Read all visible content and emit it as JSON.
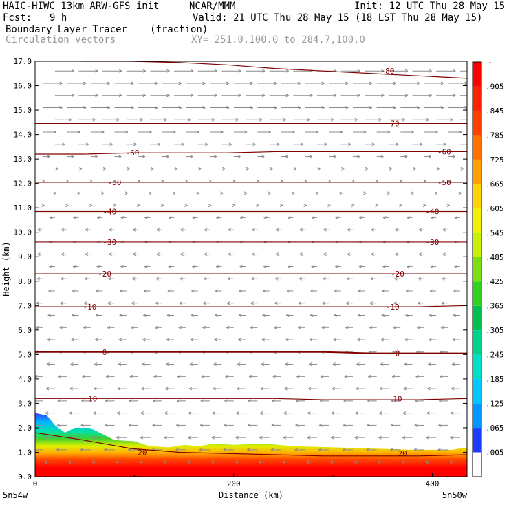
{
  "header": {
    "model": "HAIC-HIWC 13km ARW-GFS init",
    "org": "NCAR/MMM",
    "init": "Init: 12 UTC Thu 28 May 15",
    "fcst_label": "Fcst:",
    "fcst_value": "9 h",
    "valid": "Valid: 21 UTC Thu 28 May 15 (18 LST Thu 28 May 15)",
    "field1_name": "Boundary Layer Tracer",
    "field1_units": "(fraction)",
    "field2_name": "Circulation vectors",
    "xy_range": "XY= 251.0,100.0 to 284.7,100.0"
  },
  "chart_data": {
    "type": "heatmap",
    "xlabel": "Distance (km)",
    "ylabel": "Height (km)",
    "xlim": [
      0,
      435
    ],
    "ylim": [
      0,
      17
    ],
    "y_ticks": [
      "0.0",
      "1.0",
      "2.0",
      "3.0",
      "4.0",
      "5.0",
      "6.0",
      "7.0",
      "8.0",
      "9.0",
      "10.0",
      "11.0",
      "12.0",
      "13.0",
      "14.0",
      "15.0",
      "16.0",
      "17.0"
    ],
    "x_ticks": [
      {
        "value": 0,
        "label": "0"
      },
      {
        "value": 200,
        "label": "200"
      },
      {
        "value": 400,
        "label": "400"
      }
    ],
    "x_end_labels": {
      "left": "5n54w",
      "right": "5n50w"
    },
    "colorbar": {
      "levels": [
        ".005",
        ".065",
        ".125",
        ".185",
        ".245",
        ".305",
        ".365",
        ".425",
        ".485",
        ".545",
        ".605",
        ".665",
        ".725",
        ".785",
        ".845",
        ".905"
      ],
      "top_label": "-",
      "colors": [
        "#ffffff",
        "#1e3cff",
        "#0096ff",
        "#00c8ff",
        "#00e0c8",
        "#00d28c",
        "#00c050",
        "#30d020",
        "#7ce010",
        "#c8f000",
        "#f0f000",
        "#ffd200",
        "#ffa000",
        "#ff7000",
        "#ff4000",
        "#ff2000",
        "#ff0000"
      ]
    },
    "tracer_top_km": [
      [
        0,
        2.6
      ],
      [
        12,
        2.5
      ],
      [
        20,
        2.1
      ],
      [
        30,
        1.8
      ],
      [
        40,
        2.0
      ],
      [
        55,
        2.0
      ],
      [
        65,
        1.8
      ],
      [
        80,
        1.5
      ],
      [
        100,
        1.45
      ],
      [
        115,
        1.25
      ],
      [
        135,
        1.2
      ],
      [
        150,
        1.3
      ],
      [
        165,
        1.25
      ],
      [
        180,
        1.35
      ],
      [
        200,
        1.3
      ],
      [
        230,
        1.35
      ],
      [
        260,
        1.25
      ],
      [
        300,
        1.2
      ],
      [
        340,
        1.15
      ],
      [
        380,
        1.1
      ],
      [
        420,
        1.1
      ],
      [
        435,
        1.2
      ]
    ],
    "isotherms_c": [
      {
        "value": 20,
        "label": "20",
        "heights": [
          1.8,
          1.5,
          1.15,
          1.0,
          0.95,
          0.9,
          0.85,
          0.85,
          0.85,
          0.9
        ],
        "label_pos": [
          [
            108,
            1.0
          ],
          [
            370,
            0.95
          ]
        ]
      },
      {
        "value": 10,
        "label": "10",
        "heights": [
          3.2,
          3.2,
          3.2,
          3.2,
          3.2,
          3.2,
          3.15,
          3.15,
          3.15,
          3.2
        ],
        "label_pos": [
          [
            58,
            3.2
          ],
          [
            365,
            3.2
          ]
        ]
      },
      {
        "value": 0,
        "label": "0",
        "heights": [
          5.1,
          5.1,
          5.1,
          5.1,
          5.1,
          5.1,
          5.1,
          5.05,
          5.05,
          5.05
        ],
        "label_pos": [
          [
            70,
            5.1
          ],
          [
            365,
            5.05
          ]
        ]
      },
      {
        "value": -10,
        "label": "-10",
        "heights": [
          6.95,
          6.95,
          6.95,
          6.95,
          6.95,
          6.95,
          6.95,
          6.95,
          6.95,
          7.0
        ],
        "label_pos": [
          [
            55,
            6.95
          ],
          [
            360,
            6.95
          ]
        ]
      },
      {
        "value": -20,
        "label": "-20",
        "heights": [
          8.3,
          8.3,
          8.3,
          8.3,
          8.3,
          8.3,
          8.3,
          8.3,
          8.3,
          8.3
        ],
        "label_pos": [
          [
            70,
            8.3
          ],
          [
            365,
            8.3
          ]
        ]
      },
      {
        "value": -30,
        "label": "-30",
        "heights": [
          9.6,
          9.6,
          9.6,
          9.6,
          9.6,
          9.6,
          9.6,
          9.6,
          9.6,
          9.6
        ],
        "label_pos": [
          [
            75,
            9.6
          ],
          [
            400,
            9.6
          ]
        ]
      },
      {
        "value": -40,
        "label": "-40",
        "heights": [
          10.85,
          10.85,
          10.85,
          10.85,
          10.85,
          10.85,
          10.85,
          10.85,
          10.85,
          10.85
        ],
        "label_pos": [
          [
            75,
            10.85
          ],
          [
            400,
            10.85
          ]
        ]
      },
      {
        "value": -50,
        "label": "-50",
        "heights": [
          12.05,
          12.05,
          12.05,
          12.05,
          12.05,
          12.05,
          12.05,
          12.05,
          12.05,
          12.05
        ],
        "label_pos": [
          [
            80,
            12.05
          ],
          [
            412,
            12.05
          ]
        ]
      },
      {
        "value": -60,
        "label": "-60",
        "heights": [
          13.2,
          13.2,
          13.25,
          13.25,
          13.25,
          13.3,
          13.3,
          13.3,
          13.3,
          13.3
        ],
        "label_pos": [
          [
            98,
            13.25
          ],
          [
            412,
            13.3
          ]
        ]
      },
      {
        "value": -70,
        "label": "-70",
        "heights": [
          14.45,
          14.45,
          14.45,
          14.45,
          14.45,
          14.45,
          14.45,
          14.45,
          14.45,
          14.45
        ],
        "label_pos": [
          [
            360,
            14.45
          ]
        ]
      },
      {
        "value": -80,
        "label": "-80",
        "heights": [
          17.05,
          17.0,
          17.0,
          16.95,
          16.85,
          16.7,
          16.6,
          16.5,
          16.4,
          16.3
        ],
        "label_pos": [
          [
            355,
            16.6
          ]
        ]
      }
    ]
  }
}
